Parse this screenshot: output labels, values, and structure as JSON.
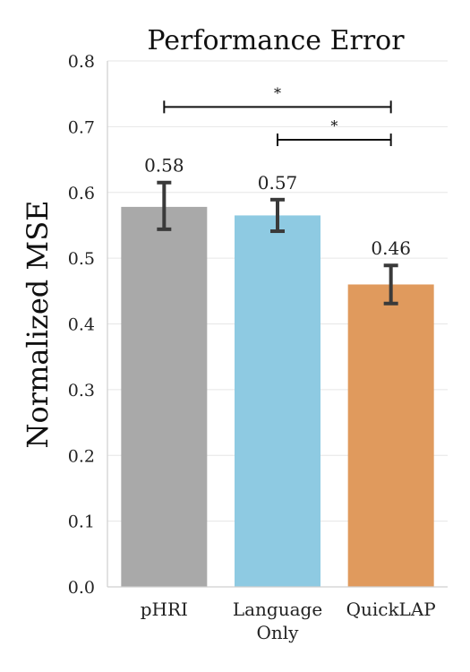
{
  "chart_data": {
    "type": "bar",
    "title": "Performance Error",
    "xlabel": "",
    "ylabel": "Normalized MSE",
    "ylim": [
      0,
      0.8
    ],
    "yticks": [
      "0.0",
      "0.1",
      "0.2",
      "0.3",
      "0.4",
      "0.5",
      "0.6",
      "0.7",
      "0.8"
    ],
    "grid": true,
    "categories": [
      {
        "lines": [
          "pHRI"
        ]
      },
      {
        "lines": [
          "Language",
          "Only"
        ]
      },
      {
        "lines": [
          "QuickLAP"
        ]
      }
    ],
    "values": [
      0.578,
      0.565,
      0.46
    ],
    "value_labels": [
      "0.58",
      "0.57",
      "0.46"
    ],
    "error_low": [
      0.544,
      0.541,
      0.431
    ],
    "error_high": [
      0.615,
      0.589,
      0.489
    ],
    "colors": [
      "#a9a9a9",
      "#8ecae2",
      "#e09a5d"
    ],
    "error_color": "#3a3a3a",
    "significance": [
      {
        "from": 0,
        "to": 2,
        "y": 0.73,
        "label": "*"
      },
      {
        "from": 1,
        "to": 2,
        "y": 0.68,
        "label": "*"
      }
    ]
  }
}
